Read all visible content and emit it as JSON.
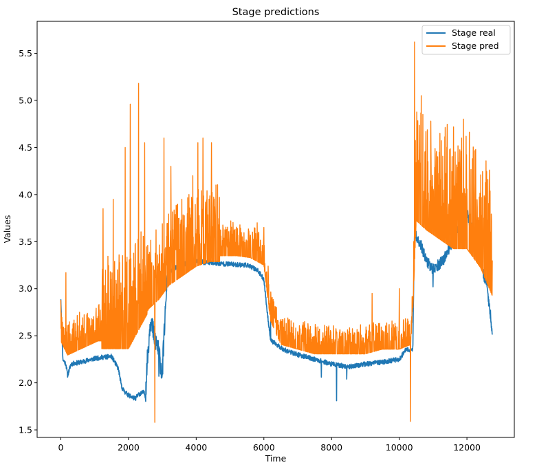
{
  "chart_data": {
    "type": "line",
    "title": "Stage predictions",
    "xlabel": "Time",
    "ylabel": "Values",
    "xlim": [
      -700,
      13400
    ],
    "ylim": [
      1.42,
      5.84
    ],
    "xticks": [
      0,
      2000,
      4000,
      6000,
      8000,
      10000,
      12000
    ],
    "xtick_labels": [
      "0",
      "2000",
      "4000",
      "6000",
      "8000",
      "10000",
      "12000"
    ],
    "yticks": [
      1.5,
      2.0,
      2.5,
      3.0,
      3.5,
      4.0,
      4.5,
      5.0,
      5.5
    ],
    "ytick_labels": [
      "1.5",
      "2.0",
      "2.5",
      "3.0",
      "3.5",
      "4.0",
      "4.5",
      "5.0",
      "5.5"
    ],
    "grid": false,
    "legend_position": "upper right",
    "series": [
      {
        "name": "Stage real",
        "color": "#1f77b4",
        "anchors": [
          [
            0,
            2.9
          ],
          [
            60,
            2.25
          ],
          [
            150,
            2.2
          ],
          [
            200,
            2.08
          ],
          [
            300,
            2.2
          ],
          [
            600,
            2.22
          ],
          [
            900,
            2.25
          ],
          [
            1200,
            2.27
          ],
          [
            1500,
            2.28
          ],
          [
            1700,
            2.15
          ],
          [
            1800,
            1.95
          ],
          [
            1900,
            1.9
          ],
          [
            2000,
            1.87
          ],
          [
            2100,
            1.85
          ],
          [
            2200,
            1.83
          ],
          [
            2300,
            1.88
          ],
          [
            2450,
            1.9
          ],
          [
            2500,
            1.86
          ],
          [
            2550,
            2.2
          ],
          [
            2650,
            2.7
          ],
          [
            2750,
            2.5
          ],
          [
            2850,
            2.4
          ],
          [
            2950,
            2.2
          ],
          [
            3000,
            2.1
          ],
          [
            3050,
            2.5
          ],
          [
            3150,
            3.15
          ],
          [
            3300,
            3.2
          ],
          [
            3500,
            3.25
          ],
          [
            3800,
            3.27
          ],
          [
            4000,
            3.3
          ],
          [
            4200,
            3.28
          ],
          [
            4500,
            3.27
          ],
          [
            5000,
            3.26
          ],
          [
            5500,
            3.25
          ],
          [
            5800,
            3.2
          ],
          [
            6000,
            3.1
          ],
          [
            6100,
            2.75
          ],
          [
            6200,
            2.45
          ],
          [
            6400,
            2.4
          ],
          [
            6600,
            2.35
          ],
          [
            7000,
            2.3
          ],
          [
            7500,
            2.25
          ],
          [
            8000,
            2.2
          ],
          [
            8500,
            2.17
          ],
          [
            9000,
            2.2
          ],
          [
            9500,
            2.22
          ],
          [
            10000,
            2.25
          ],
          [
            10200,
            2.35
          ],
          [
            10400,
            2.35
          ],
          [
            10450,
            3.6
          ],
          [
            10600,
            3.5
          ],
          [
            10800,
            3.3
          ],
          [
            11000,
            3.2
          ],
          [
            11300,
            3.3
          ],
          [
            11700,
            3.6
          ],
          [
            12000,
            3.8
          ],
          [
            12200,
            3.6
          ],
          [
            12400,
            3.3
          ],
          [
            12600,
            3.0
          ],
          [
            12750,
            2.55
          ]
        ],
        "spikes": [
          [
            200,
            2.06
          ],
          [
            2900,
            2.07
          ],
          [
            6200,
            2.65
          ],
          [
            7700,
            2.06
          ],
          [
            8150,
            1.81
          ],
          [
            8450,
            2.04
          ],
          [
            10400,
            2.37
          ],
          [
            11000,
            3.02
          ]
        ]
      },
      {
        "name": "Stage pred",
        "color": "#ff7f0e",
        "anchors": [
          [
            0,
            2.5
          ],
          [
            200,
            2.35
          ],
          [
            500,
            2.4
          ],
          [
            800,
            2.45
          ],
          [
            1100,
            2.5
          ],
          [
            1400,
            2.5
          ],
          [
            1700,
            2.5
          ],
          [
            2000,
            2.5
          ],
          [
            2300,
            2.7
          ],
          [
            2600,
            2.9
          ],
          [
            2900,
            3.0
          ],
          [
            3200,
            3.15
          ],
          [
            3600,
            3.25
          ],
          [
            4000,
            3.35
          ],
          [
            4400,
            3.4
          ],
          [
            4800,
            3.4
          ],
          [
            5200,
            3.4
          ],
          [
            5600,
            3.38
          ],
          [
            6000,
            3.3
          ],
          [
            6200,
            2.7
          ],
          [
            6500,
            2.45
          ],
          [
            7000,
            2.4
          ],
          [
            7500,
            2.35
          ],
          [
            8000,
            2.35
          ],
          [
            8500,
            2.35
          ],
          [
            9000,
            2.35
          ],
          [
            9500,
            2.4
          ],
          [
            10000,
            2.4
          ],
          [
            10350,
            2.45
          ],
          [
            10500,
            3.9
          ],
          [
            10800,
            3.8
          ],
          [
            11200,
            3.7
          ],
          [
            11600,
            3.6
          ],
          [
            12000,
            3.6
          ],
          [
            12400,
            3.4
          ],
          [
            12750,
            3.1
          ]
        ],
        "spikes": [
          [
            0,
            2.88
          ],
          [
            150,
            3.17
          ],
          [
            1250,
            3.85
          ],
          [
            1550,
            3.95
          ],
          [
            1900,
            4.5
          ],
          [
            2050,
            4.96
          ],
          [
            2300,
            5.18
          ],
          [
            2480,
            4.55
          ],
          [
            2780,
            1.58
          ],
          [
            3050,
            4.6
          ],
          [
            3250,
            4.3
          ],
          [
            3900,
            4.2
          ],
          [
            4050,
            4.55
          ],
          [
            4200,
            4.6
          ],
          [
            4450,
            4.55
          ],
          [
            5800,
            3.7
          ],
          [
            6000,
            3.65
          ],
          [
            9200,
            2.95
          ],
          [
            10000,
            3.0
          ],
          [
            10330,
            1.59
          ],
          [
            10450,
            5.62
          ],
          [
            10650,
            5.05
          ],
          [
            10850,
            4.35
          ],
          [
            11200,
            4.65
          ],
          [
            11500,
            4.45
          ],
          [
            11900,
            4.8
          ],
          [
            12200,
            4.0
          ],
          [
            12500,
            3.75
          ],
          [
            12700,
            3.6
          ]
        ]
      }
    ]
  }
}
